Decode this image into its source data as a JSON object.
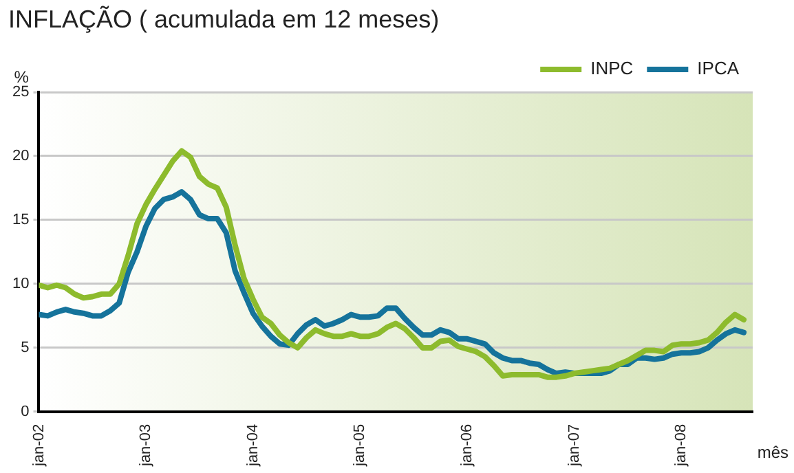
{
  "chart_data": {
    "type": "line",
    "title": "INFLAÇÃO ( acumulada em 12 meses)",
    "xlabel": "mês",
    "ylabel": "%",
    "x": [
      "2002-01",
      "2002-02",
      "2002-03",
      "2002-04",
      "2002-05",
      "2002-06",
      "2002-07",
      "2002-08",
      "2002-09",
      "2002-10",
      "2002-11",
      "2002-12",
      "2003-01",
      "2003-02",
      "2003-03",
      "2003-04",
      "2003-05",
      "2003-06",
      "2003-07",
      "2003-08",
      "2003-09",
      "2003-10",
      "2003-11",
      "2003-12",
      "2004-01",
      "2004-02",
      "2004-03",
      "2004-04",
      "2004-05",
      "2004-06",
      "2004-07",
      "2004-08",
      "2004-09",
      "2004-10",
      "2004-11",
      "2004-12",
      "2005-01",
      "2005-02",
      "2005-03",
      "2005-04",
      "2005-05",
      "2005-06",
      "2005-07",
      "2005-08",
      "2005-09",
      "2005-10",
      "2005-11",
      "2005-12",
      "2006-01",
      "2006-02",
      "2006-03",
      "2006-04",
      "2006-05",
      "2006-06",
      "2006-07",
      "2006-08",
      "2006-09",
      "2006-10",
      "2006-11",
      "2006-12",
      "2007-01",
      "2007-02",
      "2007-03",
      "2007-04",
      "2007-05",
      "2007-06",
      "2007-07",
      "2007-08",
      "2007-09",
      "2007-10",
      "2007-11",
      "2007-12",
      "2008-01",
      "2008-02",
      "2008-03",
      "2008-04",
      "2008-05",
      "2008-06",
      "2008-07",
      "2008-08"
    ],
    "series": [
      {
        "name": "INPC",
        "color": "#8dbb2d",
        "values": [
          9.9,
          9.7,
          9.9,
          9.7,
          9.2,
          8.9,
          9.0,
          9.2,
          9.2,
          10.0,
          12.2,
          14.7,
          16.2,
          17.4,
          18.5,
          19.6,
          20.4,
          19.9,
          18.4,
          17.8,
          17.5,
          16.0,
          13.0,
          10.4,
          8.8,
          7.4,
          6.9,
          6.0,
          5.4,
          5.0,
          5.8,
          6.4,
          6.1,
          5.9,
          5.9,
          6.1,
          5.9,
          5.9,
          6.1,
          6.6,
          6.9,
          6.5,
          5.8,
          5.0,
          5.0,
          5.5,
          5.6,
          5.1,
          4.9,
          4.7,
          4.3,
          3.6,
          2.8,
          2.9,
          2.9,
          2.9,
          2.9,
          2.7,
          2.7,
          2.8,
          3.0,
          3.1,
          3.2,
          3.3,
          3.4,
          3.7,
          4.0,
          4.4,
          4.8,
          4.8,
          4.7,
          5.2,
          5.3,
          5.3,
          5.4,
          5.6,
          6.2,
          7.0,
          7.6,
          7.2
        ]
      },
      {
        "name": "IPCA",
        "color": "#15739b",
        "values": [
          7.6,
          7.5,
          7.8,
          8.0,
          7.8,
          7.7,
          7.5,
          7.5,
          7.9,
          8.5,
          10.9,
          12.5,
          14.5,
          15.9,
          16.6,
          16.8,
          17.2,
          16.6,
          15.4,
          15.1,
          15.1,
          14.0,
          11.0,
          9.3,
          7.7,
          6.7,
          5.9,
          5.3,
          5.2,
          6.1,
          6.8,
          7.2,
          6.7,
          6.9,
          7.2,
          7.6,
          7.4,
          7.4,
          7.5,
          8.1,
          8.1,
          7.3,
          6.6,
          6.0,
          6.0,
          6.4,
          6.2,
          5.7,
          5.7,
          5.5,
          5.3,
          4.6,
          4.2,
          4.0,
          4.0,
          3.8,
          3.7,
          3.3,
          3.0,
          3.1,
          3.0,
          3.0,
          3.0,
          3.0,
          3.2,
          3.7,
          3.7,
          4.2,
          4.2,
          4.1,
          4.2,
          4.5,
          4.6,
          4.6,
          4.7,
          5.0,
          5.6,
          6.1,
          6.4,
          6.2
        ]
      }
    ],
    "xlim": [
      "2002-01",
      "2008-09"
    ],
    "xticks": [
      {
        "value": "2002-01",
        "label": "jan-02"
      },
      {
        "value": "2003-01",
        "label": "jan-03"
      },
      {
        "value": "2004-01",
        "label": "jan-04"
      },
      {
        "value": "2005-01",
        "label": "jan-05"
      },
      {
        "value": "2006-01",
        "label": "jan-06"
      },
      {
        "value": "2007-01",
        "label": "jan-07"
      },
      {
        "value": "2008-01",
        "label": "jan-08"
      }
    ],
    "ylim": [
      0,
      25
    ],
    "yticks": [
      0,
      5,
      10,
      15,
      20,
      25
    ],
    "grid": "y",
    "legend": "top right",
    "marker": "none",
    "line_style": "solid"
  }
}
